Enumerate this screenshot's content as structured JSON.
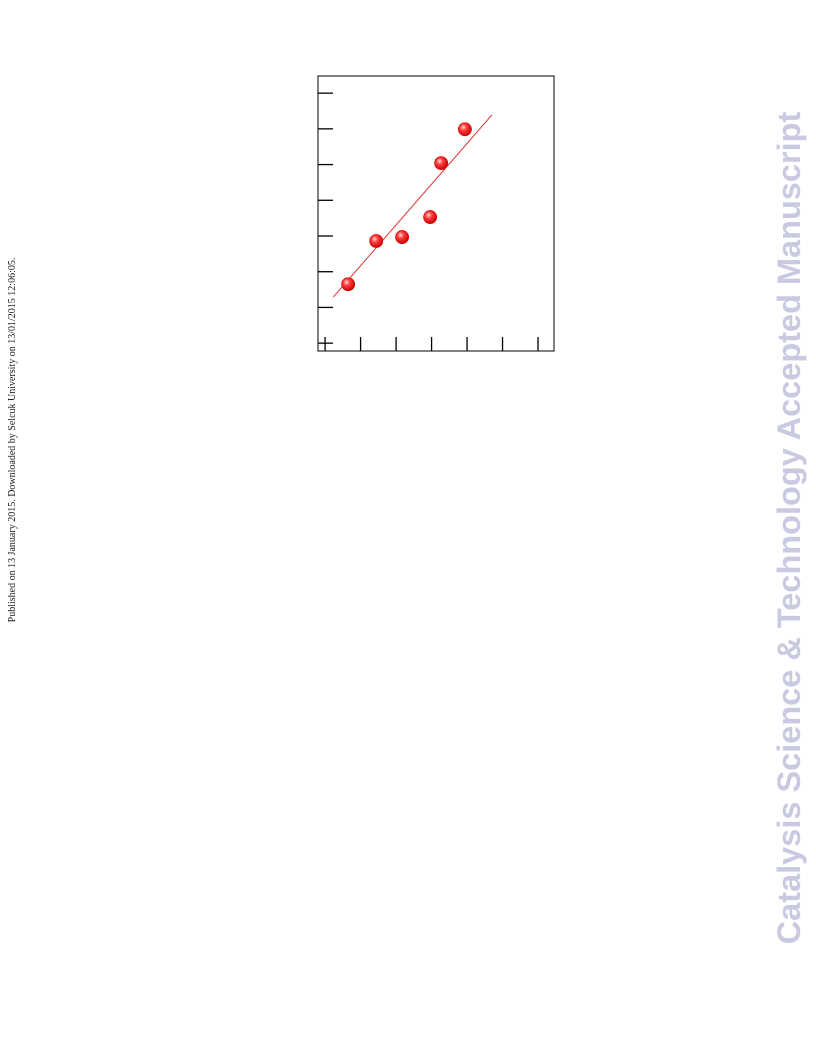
{
  "page": {
    "side_note": "Published on 13 January 2015. Downloaded by Selcuk University on 13/01/2015 12:06:05.",
    "watermark": "Catalysis Science & Technology Accepted Manuscript"
  },
  "chart_data": {
    "type": "scatter",
    "x": [
      0.65,
      1.44,
      2.17,
      2.96,
      3.27,
      3.94
    ],
    "values": [
      1.65,
      2.86,
      2.97,
      3.53,
      5.04,
      5.99
    ],
    "color": "#e00000",
    "fit_line": {
      "x": [
        0.23,
        4.7
      ],
      "values": [
        1.29,
        6.39
      ],
      "color": "#e03030"
    },
    "xlim": [
      -0.2,
      6.45
    ],
    "xticks": [
      0,
      1,
      2,
      3,
      4,
      5,
      6
    ],
    "ylim": [
      -0.22,
      7.48
    ],
    "yticks": [
      0,
      1,
      2,
      3,
      4,
      5,
      6,
      7
    ]
  }
}
